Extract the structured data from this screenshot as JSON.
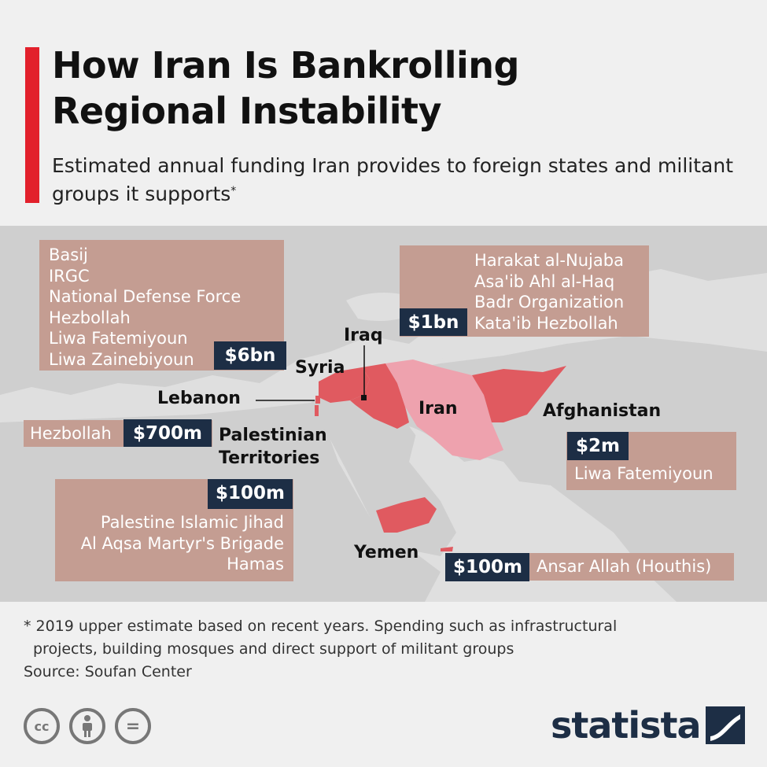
{
  "header": {
    "title": "How Iran Is Bankrolling\nRegional Instability",
    "subtitle": "Estimated annual funding Iran provides to foreign states and militant groups it supports",
    "subtitle_mark": "*"
  },
  "colors": {
    "accent": "#e2202b",
    "group_box": "#c49d92",
    "amount_tag": "#1d2e45",
    "funded_country": "#e05a60",
    "iran": "#eea2ae",
    "land": "#cfcfcf",
    "sea": "#dfdfdf"
  },
  "map": {
    "regions": [
      {
        "country": "Syria",
        "amount": "$6bn",
        "groups": [
          "Basij",
          "IRGC",
          "National Defense Force",
          "Hezbollah",
          "Liwa Fatemiyoun",
          "Liwa Zainebiyoun"
        ]
      },
      {
        "country": "Iraq",
        "amount": "$1bn",
        "groups": [
          "Harakat al-Nujaba",
          "Asa'ib Ahl al-Haq",
          "Badr Organization",
          "Kata'ib Hezbollah"
        ]
      },
      {
        "country": "Lebanon",
        "amount": "$700m",
        "groups": [
          "Hezbollah"
        ]
      },
      {
        "country": "Palestinian\nTerritories",
        "amount": "$100m",
        "groups": [
          "Palestine Islamic Jihad",
          "Al Aqsa Martyr's Brigade",
          "Hamas"
        ]
      },
      {
        "country": "Afghanistan",
        "amount": "$2m",
        "groups": [
          "Liwa Fatemiyoun"
        ]
      },
      {
        "country": "Yemen",
        "amount": "$100m",
        "groups": [
          "Ansar Allah (Houthis)"
        ]
      }
    ],
    "center_label": "Iran"
  },
  "footer": {
    "note_line1": "* 2019 upper estimate based on recent years. Spending such as infrastructural",
    "note_line2": "projects, building mosques and direct support of militant groups",
    "source": "Source: Soufan Center",
    "license_icons": [
      "creative-commons-icon",
      "attribution-icon",
      "no-derivatives-icon"
    ],
    "cc_glyph": "cc",
    "nd_glyph": "=",
    "brand": "statista"
  }
}
